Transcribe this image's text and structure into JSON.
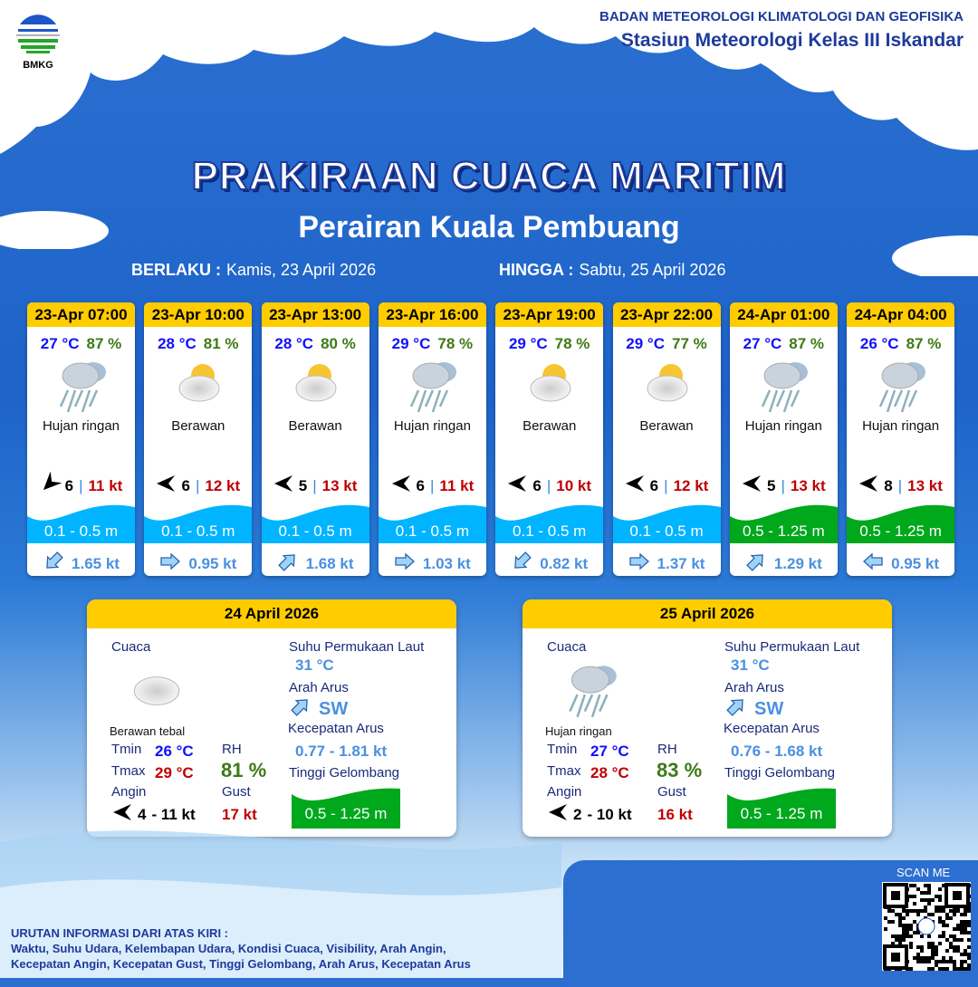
{
  "header": {
    "org": "BADAN METEOROLOGI KLIMATOLOGI DAN GEOFISIKA",
    "station": "Stasiun Meteorologi Kelas III Iskandar",
    "logo_text": "BMKG"
  },
  "title": "PRAKIRAAN CUACA MARITIM",
  "subtitle": "Perairan Kuala Pembuang",
  "validity": {
    "from_label": "BERLAKU :",
    "from": "Kamis, 23 April 2026",
    "to_label": "HINGGA :",
    "to": "Sabtu, 25 April 2026"
  },
  "colors": {
    "header_yellow": "#ffcc00",
    "wave_low": "#00b4ff",
    "wave_moderate": "#00a81c",
    "temp": "#1010ff",
    "rh": "#3d7a16",
    "gust": "#c00000"
  },
  "forecasts": [
    {
      "time": "23-Apr 07:00",
      "temp": "27 °C",
      "rh": "87 %",
      "icon": "rain-cloud-icon",
      "weather": "Hujan ringan",
      "wind_dir_deg": 45,
      "wind": "6",
      "gust": "11 kt",
      "wave": "0.1 - 0.5 m",
      "wave_level": "low",
      "current_dir_deg": 45,
      "current": "1.65 kt"
    },
    {
      "time": "23-Apr 10:00",
      "temp": "28 °C",
      "rh": "81 %",
      "icon": "partly-cloudy-icon",
      "weather": "Berawan",
      "wind_dir_deg": 90,
      "wind": "6",
      "gust": "12 kt",
      "wave": "0.1 - 0.5 m",
      "wave_level": "low",
      "current_dir_deg": 270,
      "current": "0.95 kt"
    },
    {
      "time": "23-Apr 13:00",
      "temp": "28 °C",
      "rh": "80 %",
      "icon": "partly-cloudy-icon",
      "weather": "Berawan",
      "wind_dir_deg": 90,
      "wind": "5",
      "gust": "13 kt",
      "wave": "0.1 - 0.5 m",
      "wave_level": "low",
      "current_dir_deg": 225,
      "current": "1.68 kt"
    },
    {
      "time": "23-Apr 16:00",
      "temp": "29 °C",
      "rh": "78 %",
      "icon": "rain-cloud-icon",
      "weather": "Hujan ringan",
      "wind_dir_deg": 90,
      "wind": "6",
      "gust": "11 kt",
      "wave": "0.1 - 0.5 m",
      "wave_level": "low",
      "current_dir_deg": 270,
      "current": "1.03 kt"
    },
    {
      "time": "23-Apr 19:00",
      "temp": "29 °C",
      "rh": "78 %",
      "icon": "partly-cloudy-icon",
      "weather": "Berawan",
      "wind_dir_deg": 90,
      "wind": "6",
      "gust": "10 kt",
      "wave": "0.1 - 0.5 m",
      "wave_level": "low",
      "current_dir_deg": 45,
      "current": "0.82 kt"
    },
    {
      "time": "23-Apr 22:00",
      "temp": "29 °C",
      "rh": "77 %",
      "icon": "partly-cloudy-icon",
      "weather": "Berawan",
      "wind_dir_deg": 90,
      "wind": "6",
      "gust": "12 kt",
      "wave": "0.1 - 0.5 m",
      "wave_level": "low",
      "current_dir_deg": 270,
      "current": "1.37 kt"
    },
    {
      "time": "24-Apr 01:00",
      "temp": "27 °C",
      "rh": "87 %",
      "icon": "rain-cloud-icon",
      "weather": "Hujan ringan",
      "wind_dir_deg": 90,
      "wind": "5",
      "gust": "13 kt",
      "wave": "0.5 - 1.25 m",
      "wave_level": "moderate",
      "current_dir_deg": 225,
      "current": "1.29 kt"
    },
    {
      "time": "24-Apr 04:00",
      "temp": "26 °C",
      "rh": "87 %",
      "icon": "rain-cloud-icon",
      "weather": "Hujan ringan",
      "wind_dir_deg": 90,
      "wind": "8",
      "gust": "13 kt",
      "wave": "0.5 - 1.25 m",
      "wave_level": "moderate",
      "current_dir_deg": 90,
      "current": "0.95 kt"
    }
  ],
  "labels": {
    "cuaca": "Cuaca",
    "sst": "Suhu Permukaan Laut",
    "arah_arus": "Arah Arus",
    "kec_arus": "Kecepatan Arus",
    "tinggi": "Tinggi Gelombang",
    "tmin": "Tmin",
    "tmax": "Tmax",
    "rh": "RH",
    "angin": "Angin",
    "gust": "Gust"
  },
  "daily": [
    {
      "date": "24 April 2026",
      "icon": "cloudy-icon",
      "weather": "Berawan tebal",
      "tmin": "26 °C",
      "tmax": "29 °C",
      "rh": "81 %",
      "wind": "4",
      "wind_max": "- 11 kt",
      "gust": "17 kt",
      "sst": "31 °C",
      "current_dir": "SW",
      "current": "0.77 - 1.81 kt",
      "wave": "0.5 - 1.25 m"
    },
    {
      "date": "25 April 2026",
      "icon": "rain-cloud-icon",
      "weather": "Hujan ringan",
      "tmin": "27 °C",
      "tmax": "28 °C",
      "rh": "83 %",
      "wind": "2",
      "wind_max": "- 10 kt",
      "gust": "16 kt",
      "sst": "31 °C",
      "current_dir": "SW",
      "current": "0.76 - 1.68 kt",
      "wave": "0.5 - 1.25 m"
    }
  ],
  "footer": {
    "title": "URUTAN INFORMASI DARI ATAS KIRI :",
    "line1": "Waktu, Suhu Udara, Kelembapan Udara, Kondisi Cuaca, Visibility, Arah Angin,",
    "line2": "Kecepatan Angin, Kecepatan Gust, Tinggi Gelombang, Arah Arus, Kecepatan Arus"
  },
  "scan": "SCAN ME"
}
